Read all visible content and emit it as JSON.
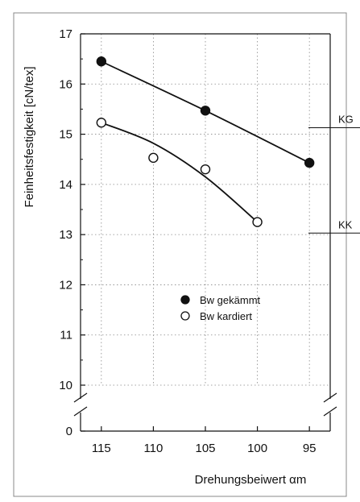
{
  "chart_data": {
    "type": "scatter",
    "xlabel": "Drehungsbeiwert αm",
    "ylabel": "Feinheitsfestigkeit [cN/tex]",
    "x_ticks": [
      "115",
      "110",
      "105",
      "100",
      "95"
    ],
    "y_ticks": [
      "17",
      "16",
      "15",
      "14",
      "13",
      "12",
      "11",
      "10",
      "0"
    ],
    "x_reversed": true,
    "y_axis_break": "between 0 and 10",
    "xlim": [
      117,
      93
    ],
    "ylim": [
      9.0,
      17
    ],
    "grid": true,
    "legend_placement": "center",
    "series": [
      {
        "name": "Bw gekämmt",
        "marker": "filled-circle",
        "x": [
          115,
          105,
          95
        ],
        "y": [
          16.45,
          15.47,
          14.43
        ],
        "fit": [
          [
            115,
            16.45
          ],
          [
            105,
            15.47
          ],
          [
            95,
            14.43
          ]
        ]
      },
      {
        "name": "Bw kardiert",
        "marker": "open-circle",
        "x": [
          115,
          110,
          105,
          100
        ],
        "y": [
          15.23,
          14.53,
          14.3,
          13.25
        ],
        "fit": [
          [
            115,
            15.23
          ],
          [
            110,
            14.82
          ],
          [
            105,
            14.15
          ],
          [
            100,
            13.25
          ]
        ]
      }
    ],
    "reference_lines": [
      {
        "label": "KG",
        "y": 15.13
      },
      {
        "label": "KK",
        "y": 13.03
      }
    ]
  }
}
